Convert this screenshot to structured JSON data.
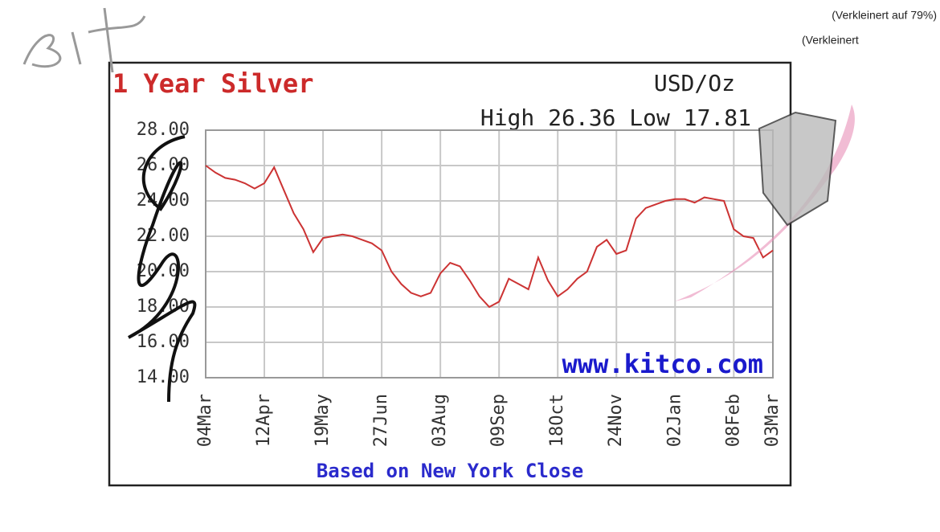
{
  "chart_data": {
    "type": "line",
    "title": "1 Year Silver",
    "unit_label": "USD/Oz",
    "subtitle": "High 26.36 Low 17.81",
    "source": "www.kitco.com",
    "x_label": "Based on New York Close",
    "annotations": [
      "(Verkleinert auf 79%)",
      "(Verkleinert"
    ],
    "categories": [
      "04Mar",
      null,
      null,
      null,
      null,
      null,
      "12Apr",
      null,
      null,
      null,
      null,
      null,
      "19May",
      null,
      null,
      null,
      null,
      null,
      "27Jun",
      null,
      null,
      null,
      null,
      null,
      "03Aug",
      null,
      null,
      null,
      null,
      null,
      "09Sep",
      null,
      null,
      null,
      null,
      null,
      "18Oct",
      null,
      null,
      null,
      null,
      null,
      "24Nov",
      null,
      null,
      null,
      null,
      null,
      "02Jan",
      null,
      null,
      null,
      null,
      null,
      "08Feb",
      null,
      null,
      null,
      "03Mar"
    ],
    "series": [
      {
        "name": "Silver",
        "color": "#cc3333",
        "values": [
          26.0,
          25.6,
          25.3,
          25.2,
          25.0,
          24.7,
          25.0,
          25.9,
          24.6,
          23.3,
          22.4,
          21.1,
          21.9,
          22.0,
          22.1,
          22.0,
          21.8,
          21.6,
          21.2,
          20.0,
          19.3,
          18.8,
          18.6,
          18.8,
          19.9,
          20.5,
          20.3,
          19.5,
          18.6,
          18.0,
          18.3,
          19.6,
          19.3,
          19.0,
          20.8,
          19.5,
          18.6,
          19.0,
          19.6,
          20.0,
          21.4,
          21.8,
          21.0,
          21.2,
          23.0,
          23.6,
          23.8,
          24.0,
          24.1,
          24.1,
          23.9,
          24.2,
          24.1,
          24.0,
          22.4,
          22.0,
          21.9,
          20.8,
          21.2
        ]
      }
    ],
    "ylim": [
      14,
      28
    ],
    "yticks": [
      {
        "value": 14,
        "label": "14.00"
      },
      {
        "value": 16,
        "label": "16.00"
      },
      {
        "value": 18,
        "label": "18.00"
      },
      {
        "value": 20,
        "label": "20.00"
      },
      {
        "value": 22,
        "label": "22.00"
      },
      {
        "value": 24,
        "label": "24.00"
      },
      {
        "value": 26,
        "label": "26.00"
      },
      {
        "value": 28,
        "label": "28.00"
      }
    ],
    "grid": true
  }
}
